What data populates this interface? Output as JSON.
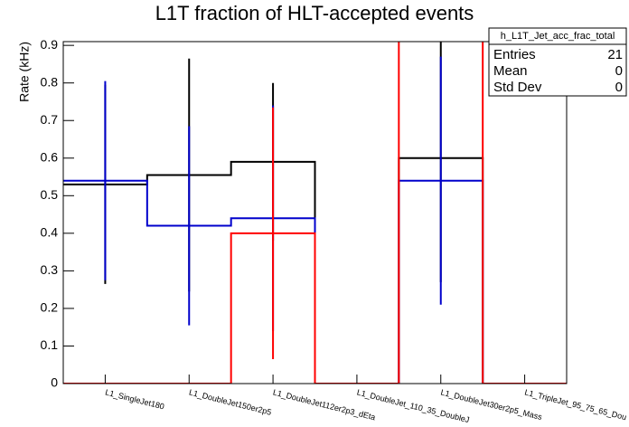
{
  "chart_data": {
    "type": "step-histogram",
    "title": "L1T fraction of HLT-accepted events",
    "y_label": "Rate (kHz)",
    "categories": [
      "L1_SingleJet180",
      "L1_DoubleJet150er2p5",
      "L1_DoubleJet112er2p3_dEta",
      "L1_DoubleJet_110_35_DoubleJ",
      "L1_DoubleJet30er2p5_Mass",
      "L1_TripleJet_95_75_65_Dou"
    ],
    "ylim": [
      0,
      0.91
    ],
    "yticks": [
      0,
      0.1,
      0.2,
      0.3,
      0.4,
      0.5,
      0.6,
      0.7,
      0.8,
      0.9
    ],
    "series": [
      {
        "color": "#000000",
        "values": [
          0.53,
          0.555,
          0.59,
          0,
          0.6,
          0
        ],
        "errors": [
          0.265,
          0.31,
          0.21,
          0,
          0.33,
          0
        ]
      },
      {
        "color": "#0000cc",
        "values": [
          0.54,
          0.42,
          0.44,
          0,
          0.54,
          0
        ],
        "errors": [
          0.265,
          0.265,
          0.3,
          0,
          0.33,
          0
        ]
      },
      {
        "color": "#ff0000",
        "values": [
          0,
          0,
          0.4,
          0,
          1,
          0
        ],
        "errors": [
          0,
          0,
          0.335,
          0,
          0,
          0
        ]
      }
    ],
    "stats": {
      "title": "h_L1T_Jet_acc_frac_total",
      "rows": [
        {
          "label": "Entries",
          "value": 21
        },
        {
          "label": "Mean",
          "value": 0
        },
        {
          "label": "Std Dev",
          "value": 0
        }
      ]
    }
  }
}
